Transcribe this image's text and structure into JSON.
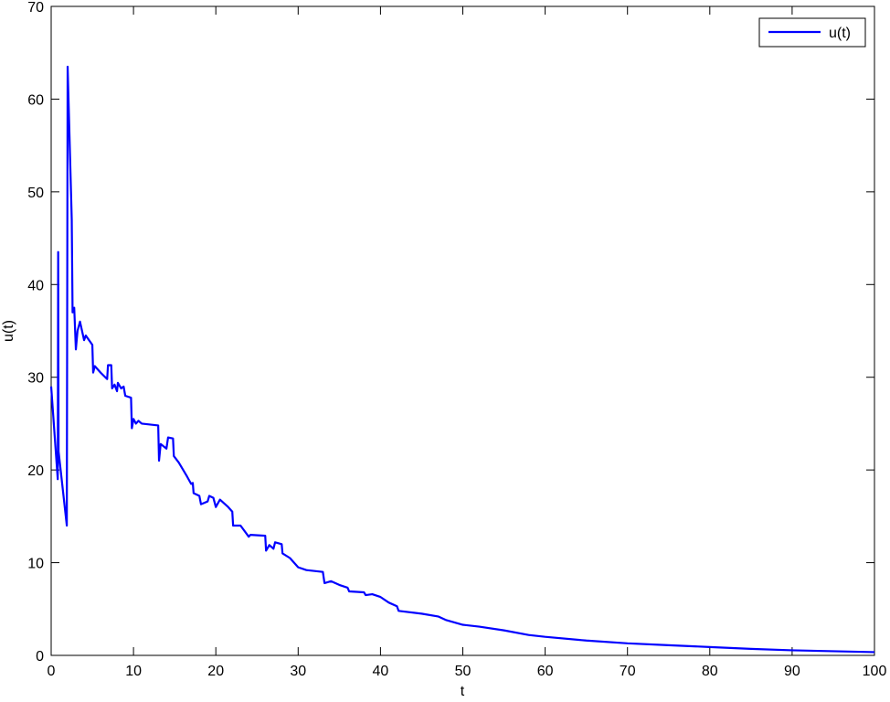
{
  "chart_data": {
    "type": "line",
    "xlabel": "t",
    "ylabel": "u(t)",
    "x": [
      0,
      0.8,
      0.85,
      0.9,
      1.9,
      2.0,
      2.5,
      2.6,
      2.8,
      3.0,
      3.2,
      3.5,
      4,
      4.2,
      5,
      5.1,
      5.3,
      6,
      6.8,
      6.9,
      7.3,
      7.4,
      7.7,
      8,
      8.1,
      8.5,
      8.8,
      9,
      9.7,
      9.8,
      10,
      10.3,
      10.6,
      11,
      13,
      13.1,
      13.3,
      14,
      14.2,
      14.8,
      14.9,
      15.5,
      16.5,
      17,
      17.2,
      17.3,
      18,
      18.2,
      19,
      19.2,
      19.7,
      20,
      20.5,
      21.5,
      22,
      22.1,
      23,
      24,
      24.2,
      26,
      26.1,
      26.5,
      27,
      27.2,
      28,
      28.1,
      29,
      30,
      31,
      33,
      33.2,
      34,
      35,
      36,
      36.2,
      38,
      38.2,
      39,
      40,
      41,
      42,
      42.2,
      45,
      47,
      48,
      50,
      52,
      55,
      58,
      60,
      65,
      70,
      75,
      80,
      85,
      90,
      95,
      100
    ],
    "series": [
      {
        "name": "u(t)",
        "color": "#0000ff",
        "values": [
          29,
          19,
          43.5,
          22,
          14,
          63.5,
          47,
          37,
          37.5,
          33,
          35,
          36,
          34,
          34.5,
          33.5,
          30.5,
          31.2,
          30.5,
          29.8,
          31.3,
          31.3,
          28.8,
          29.2,
          28.5,
          29.4,
          28.8,
          29,
          28,
          27.8,
          24.5,
          25.5,
          25,
          25.3,
          25,
          24.8,
          21,
          22.8,
          22.3,
          23.5,
          23.4,
          21.5,
          20.8,
          19.3,
          18.5,
          18.6,
          17.5,
          17.2,
          16.3,
          16.6,
          17.2,
          17,
          16,
          16.8,
          16,
          15.5,
          14,
          14,
          12.8,
          13,
          12.9,
          11.3,
          11.9,
          11.5,
          12.2,
          12,
          11,
          10.5,
          9.5,
          9.2,
          9,
          7.8,
          8,
          7.6,
          7.3,
          6.9,
          6.8,
          6.5,
          6.6,
          6.3,
          5.7,
          5.3,
          4.8,
          4.5,
          4.2,
          3.8,
          3.3,
          3.1,
          2.7,
          2.2,
          2,
          1.6,
          1.3,
          1.1,
          0.9,
          0.7,
          0.55,
          0.45,
          0.35
        ]
      }
    ],
    "xlim": [
      0,
      100
    ],
    "xticks": [
      0,
      10,
      20,
      30,
      40,
      50,
      60,
      70,
      80,
      90,
      100
    ],
    "ylim": [
      0,
      70
    ],
    "yticks": [
      0,
      10,
      20,
      30,
      40,
      50,
      60,
      70
    ],
    "grid": false,
    "legend": "northeast"
  }
}
